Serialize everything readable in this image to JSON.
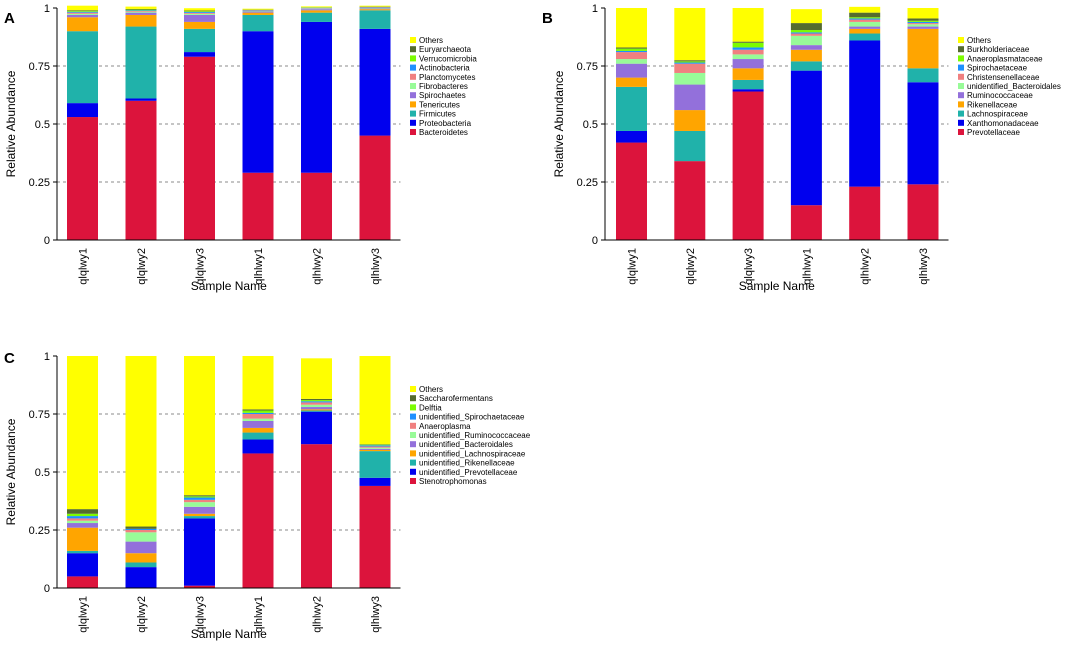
{
  "chart_data": [
    {
      "type": "stacked_bar",
      "panel_label": "A",
      "xlabel": "Sample Name",
      "ylabel": "Relative Abundance",
      "ylim": [
        0,
        1
      ],
      "yticks": [
        "0",
        "0.25",
        "0.5",
        "0.75",
        "1"
      ],
      "grid": "dashed at 0.25 / 0.5 / 0.75",
      "legend_position": "right",
      "categories": [
        "qlqlwy1",
        "qlqlwy2",
        "qlqlwy3",
        "qlhlwy1",
        "qlhlwy2",
        "qlhlwy3"
      ],
      "legend": [
        "Others",
        "Euryarchaeota",
        "Verrucomicrobia",
        "Actinobacteria",
        "Planctomycetes",
        "Fibrobacteres",
        "Spirochaetes",
        "Tenericutes",
        "Firmicutes",
        "Proteobacteria",
        "Bacteroidetes"
      ],
      "series": [
        {
          "name": "Bacteroidetes",
          "color": "#dc143c",
          "values": [
            0.53,
            0.6,
            0.79,
            0.29,
            0.29,
            0.45
          ]
        },
        {
          "name": "Proteobacteria",
          "color": "#0000ee",
          "values": [
            0.06,
            0.01,
            0.02,
            0.61,
            0.65,
            0.46
          ]
        },
        {
          "name": "Firmicutes",
          "color": "#20b2aa",
          "values": [
            0.31,
            0.31,
            0.1,
            0.07,
            0.04,
            0.08
          ]
        },
        {
          "name": "Tenericutes",
          "color": "#ffa500",
          "values": [
            0.06,
            0.05,
            0.03,
            0.01,
            0.01,
            0.005
          ]
        },
        {
          "name": "Spirochaetes",
          "color": "#9370db",
          "values": [
            0.01,
            0.01,
            0.03,
            0.005,
            0.005,
            0.003
          ]
        },
        {
          "name": "Fibrobacteres",
          "color": "#98fb98",
          "values": [
            0.005,
            0.004,
            0.005,
            0.002,
            0.002,
            0.002
          ]
        },
        {
          "name": "Planctomycetes",
          "color": "#f08080",
          "values": [
            0.005,
            0.003,
            0.004,
            0.002,
            0.002,
            0.002
          ]
        },
        {
          "name": "Actinobacteria",
          "color": "#1e90ff",
          "values": [
            0.004,
            0.003,
            0.004,
            0.002,
            0.002,
            0.002
          ]
        },
        {
          "name": "Verrucomicrobia",
          "color": "#7cfc00",
          "values": [
            0.003,
            0.003,
            0.003,
            0.001,
            0.001,
            0.001
          ]
        },
        {
          "name": "Euryarchaeota",
          "color": "#556b2f",
          "values": [
            0.003,
            0.003,
            0.003,
            0.001,
            0.001,
            0.001
          ]
        },
        {
          "name": "Others",
          "color": "#ffff00",
          "values": [
            0.02,
            0.01,
            0.01,
            0.004,
            0.004,
            0.004
          ]
        }
      ]
    },
    {
      "type": "stacked_bar",
      "panel_label": "B",
      "xlabel": "Sample Name",
      "ylabel": "Relative Abundance",
      "ylim": [
        0,
        1
      ],
      "yticks": [
        "0",
        "0.25",
        "0.5",
        "0.75",
        "1"
      ],
      "grid": "dashed at 0.25 / 0.5 / 0.75",
      "legend_position": "right",
      "categories": [
        "qlqlwy1",
        "qlqlwy2",
        "qlqlwy3",
        "qlhlwy1",
        "qlhlwy2",
        "qlhlwy3"
      ],
      "legend": [
        "Others",
        "Burkholderiaceae",
        "Anaeroplasmataceae",
        "Spirochaetaceae",
        "Christensenellaceae",
        "unidentified_Bacteroidales",
        "Ruminococcaceae",
        "Rikenellaceae",
        "Lachnospiraceae",
        "Xanthomonadaceae",
        "Prevotellaceae"
      ],
      "series": [
        {
          "name": "Prevotellaceae",
          "color": "#dc143c",
          "values": [
            0.42,
            0.34,
            0.64,
            0.15,
            0.23,
            0.24
          ]
        },
        {
          "name": "Xanthomonadaceae",
          "color": "#0000ee",
          "values": [
            0.05,
            0.0,
            0.01,
            0.58,
            0.63,
            0.44
          ]
        },
        {
          "name": "Lachnospiraceae",
          "color": "#20b2aa",
          "values": [
            0.19,
            0.13,
            0.04,
            0.04,
            0.03,
            0.06
          ]
        },
        {
          "name": "Rikenellaceae",
          "color": "#ffa500",
          "values": [
            0.04,
            0.09,
            0.05,
            0.05,
            0.02,
            0.17
          ]
        },
        {
          "name": "Ruminococcaceae",
          "color": "#9370db",
          "values": [
            0.06,
            0.11,
            0.04,
            0.02,
            0.01,
            0.01
          ]
        },
        {
          "name": "unidentified_Bacteroidales",
          "color": "#98fb98",
          "values": [
            0.02,
            0.05,
            0.02,
            0.04,
            0.02,
            0.01
          ]
        },
        {
          "name": "Christensenellaceae",
          "color": "#f08080",
          "values": [
            0.03,
            0.04,
            0.02,
            0.01,
            0.01,
            0.005
          ]
        },
        {
          "name": "Spirochaetaceae",
          "color": "#1e90ff",
          "values": [
            0.005,
            0.005,
            0.01,
            0.005,
            0.005,
            0.005
          ]
        },
        {
          "name": "Anaeroplasmataceae",
          "color": "#7cfc00",
          "values": [
            0.01,
            0.005,
            0.02,
            0.01,
            0.005,
            0.005
          ]
        },
        {
          "name": "Burkholderiaceae",
          "color": "#556b2f",
          "values": [
            0.005,
            0.005,
            0.005,
            0.03,
            0.02,
            0.01
          ]
        },
        {
          "name": "Others",
          "color": "#ffff00",
          "values": [
            0.17,
            0.225,
            0.145,
            0.06,
            0.025,
            0.045
          ]
        }
      ]
    },
    {
      "type": "stacked_bar",
      "panel_label": "C",
      "xlabel": "Sample Name",
      "ylabel": "Relative Abundance",
      "ylim": [
        0,
        1
      ],
      "yticks": [
        "0",
        "0.25",
        "0.5",
        "0.75",
        "1"
      ],
      "grid": "dashed at 0.25 / 0.5 / 0.75",
      "legend_position": "right",
      "categories": [
        "qlqlwy1",
        "qlqlwy2",
        "qlqlwy3",
        "qlhlwy1",
        "qlhlwy2",
        "qlhlwy3"
      ],
      "legend": [
        "Others",
        "Saccharofermentans",
        "Delftia",
        "unidentified_Spirochaetaceae",
        "Anaeroplasma",
        "unidentified_Ruminococcaceae",
        "unidentified_Bacteroidales",
        "unidentified_Lachnospiraceae",
        "unidentified_Rikenellaceae",
        "unidentified_Prevotellaceae",
        "Stenotrophomonas"
      ],
      "series": [
        {
          "name": "Stenotrophomonas",
          "color": "#dc143c",
          "values": [
            0.05,
            0.0,
            0.01,
            0.58,
            0.62,
            0.44
          ]
        },
        {
          "name": "unidentified_Prevotellaceae",
          "color": "#0000ee",
          "values": [
            0.1,
            0.09,
            0.29,
            0.06,
            0.14,
            0.035
          ]
        },
        {
          "name": "unidentified_Rikenellaceae",
          "color": "#20b2aa",
          "values": [
            0.01,
            0.02,
            0.01,
            0.03,
            0.005,
            0.115
          ]
        },
        {
          "name": "unidentified_Lachnospiraceae",
          "color": "#ffa500",
          "values": [
            0.1,
            0.04,
            0.01,
            0.02,
            0.005,
            0.005
          ]
        },
        {
          "name": "unidentified_Bacteroidales",
          "color": "#9370db",
          "values": [
            0.02,
            0.05,
            0.03,
            0.03,
            0.01,
            0.005
          ]
        },
        {
          "name": "unidentified_Ruminococcaceae",
          "color": "#98fb98",
          "values": [
            0.01,
            0.04,
            0.02,
            0.01,
            0.01,
            0.005
          ]
        },
        {
          "name": "Anaeroplasma",
          "color": "#f08080",
          "values": [
            0.01,
            0.01,
            0.01,
            0.02,
            0.01,
            0.005
          ]
        },
        {
          "name": "unidentified_Spirochaetaceae",
          "color": "#1e90ff",
          "values": [
            0.01,
            0.005,
            0.01,
            0.005,
            0.005,
            0.005
          ]
        },
        {
          "name": "Delftia",
          "color": "#7cfc00",
          "values": [
            0.01,
            0.0,
            0.005,
            0.01,
            0.005,
            0.003
          ]
        },
        {
          "name": "Saccharofermentans",
          "color": "#556b2f",
          "values": [
            0.02,
            0.01,
            0.005,
            0.005,
            0.005,
            0.002
          ]
        },
        {
          "name": "Others",
          "color": "#ffff00",
          "values": [
            0.66,
            0.735,
            0.6,
            0.23,
            0.175,
            0.38
          ]
        }
      ]
    }
  ]
}
